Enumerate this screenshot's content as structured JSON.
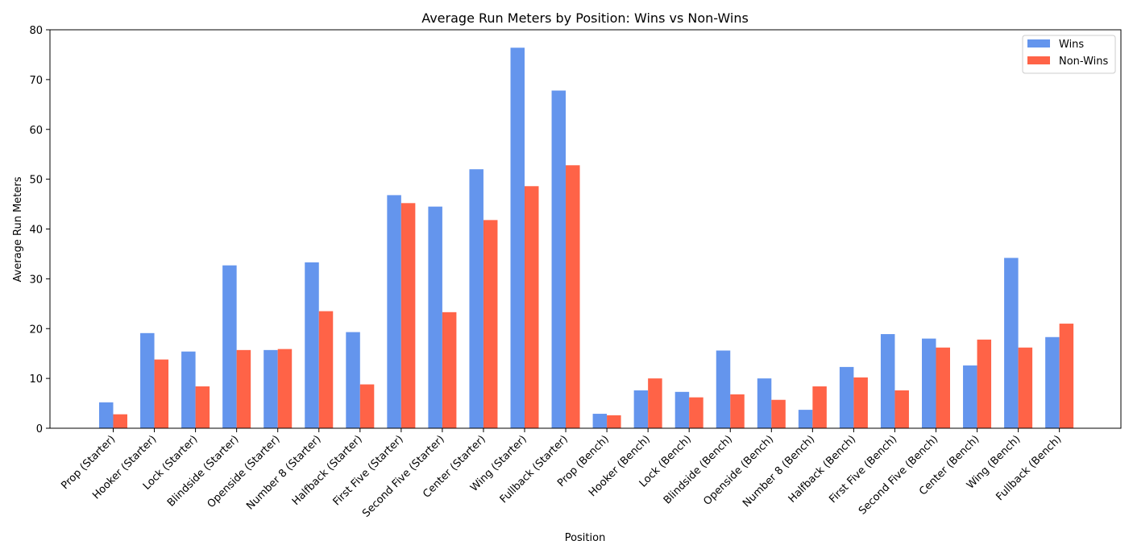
{
  "chart_data": {
    "type": "bar",
    "title": "Average Run Meters by Position: Wins vs Non-Wins",
    "xlabel": "Position",
    "ylabel": "Average Run Meters",
    "ylim": [
      0,
      80
    ],
    "yticks": [
      0,
      10,
      20,
      30,
      40,
      50,
      60,
      70,
      80
    ],
    "grid": false,
    "legend_position": "top-right",
    "categories": [
      "Prop (Starter)",
      "Hooker (Starter)",
      "Lock (Starter)",
      "Blindside (Starter)",
      "Openside (Starter)",
      "Number 8 (Starter)",
      "Halfback (Starter)",
      "First Five (Starter)",
      "Second Five (Starter)",
      "Center (Starter)",
      "Wing (Starter)",
      "Fullback (Starter)",
      "Prop (Bench)",
      "Hooker (Bench)",
      "Lock (Bench)",
      "Blindside (Bench)",
      "Openside (Bench)",
      "Number 8 (Bench)",
      "Halfback (Bench)",
      "First Five (Bench)",
      "Second Five (Bench)",
      "Center (Bench)",
      "Wing (Bench)",
      "Fullback (Bench)"
    ],
    "series": [
      {
        "name": "Wins",
        "color": "#6495ED",
        "values": [
          5.2,
          19.1,
          15.4,
          32.7,
          15.7,
          33.3,
          19.3,
          46.8,
          44.5,
          52.0,
          76.4,
          67.8,
          2.9,
          7.6,
          7.3,
          15.6,
          10.0,
          3.7,
          12.3,
          18.9,
          18.0,
          12.6,
          34.2,
          18.3
        ]
      },
      {
        "name": "Non-Wins",
        "color": "#FF6347",
        "values": [
          2.8,
          13.8,
          8.4,
          15.7,
          15.9,
          23.5,
          8.8,
          45.2,
          23.3,
          41.8,
          48.6,
          52.8,
          2.6,
          10.0,
          6.2,
          6.8,
          5.7,
          8.4,
          10.2,
          7.6,
          16.2,
          17.8,
          16.2,
          21.0
        ]
      }
    ]
  }
}
